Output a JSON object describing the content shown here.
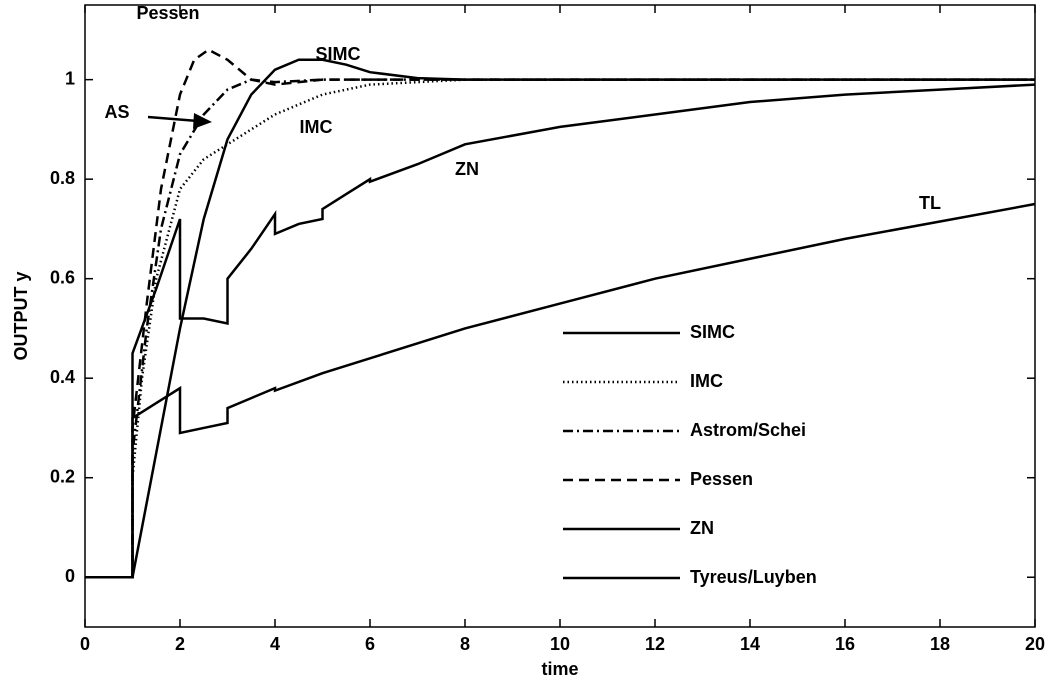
{
  "chart_data": {
    "type": "line",
    "xlabel": "time",
    "ylabel": "OUTPUT y",
    "xlim": [
      0,
      20
    ],
    "ylim": [
      -0.1,
      1.15
    ],
    "xticks": [
      0,
      2,
      4,
      6,
      8,
      10,
      12,
      14,
      16,
      18,
      20
    ],
    "yticks": [
      0,
      0.2,
      0.4,
      0.6,
      0.8,
      1
    ],
    "grid": false,
    "legend": "lower right",
    "annotations": [
      "Pessen",
      "SIMC",
      "AS",
      "IMC",
      "ZN",
      "TL"
    ],
    "series": [
      {
        "name": "SIMC",
        "color": "#000000",
        "dash": "solid",
        "x": [
          0,
          1,
          1.5,
          2,
          2.5,
          3,
          3.5,
          4,
          4.5,
          5,
          5.5,
          6,
          7,
          8,
          10,
          20
        ],
        "values": [
          0,
          0,
          0.25,
          0.5,
          0.72,
          0.88,
          0.97,
          1.02,
          1.04,
          1.04,
          1.03,
          1.015,
          1.003,
          1.0,
          1.0,
          1.0
        ]
      },
      {
        "name": "IMC",
        "color": "#000000",
        "dash": "dotted",
        "x": [
          0,
          1,
          1,
          1.2,
          1.5,
          2,
          2.5,
          3,
          3.5,
          4,
          5,
          6,
          7,
          8,
          20
        ],
        "values": [
          0,
          0,
          0.2,
          0.4,
          0.6,
          0.78,
          0.84,
          0.87,
          0.9,
          0.93,
          0.97,
          0.99,
          0.995,
          1,
          1
        ]
      },
      {
        "name": "Astrom/Schei",
        "color": "#000000",
        "dash": "dashdot",
        "x": [
          0,
          1,
          1,
          1.3,
          1.6,
          2,
          2.5,
          3,
          3.5,
          4,
          5,
          6,
          20
        ],
        "values": [
          0,
          0,
          0.25,
          0.5,
          0.7,
          0.85,
          0.93,
          0.98,
          1.0,
          0.995,
          1.0,
          1,
          1
        ]
      },
      {
        "name": "Pessen",
        "color": "#000000",
        "dash": "dashed",
        "x": [
          0,
          1,
          1,
          1.3,
          1.6,
          2,
          2.3,
          2.6,
          3,
          3.5,
          4,
          4.5,
          5,
          20
        ],
        "values": [
          0,
          0,
          0.3,
          0.55,
          0.78,
          0.97,
          1.04,
          1.06,
          1.04,
          1.0,
          0.99,
          0.995,
          1,
          1
        ]
      },
      {
        "name": "ZN",
        "color": "#000000",
        "dash": "solid",
        "x": [
          0,
          1,
          1,
          1.5,
          2,
          2,
          2.5,
          3,
          3,
          3.5,
          4,
          4,
          4.5,
          5,
          5,
          5.5,
          6,
          6,
          7,
          8,
          10,
          12,
          14,
          16,
          18,
          20
        ],
        "values": [
          0,
          0,
          0.45,
          0.58,
          0.72,
          0.52,
          0.52,
          0.51,
          0.6,
          0.66,
          0.73,
          0.69,
          0.71,
          0.72,
          0.74,
          0.77,
          0.8,
          0.795,
          0.83,
          0.87,
          0.905,
          0.93,
          0.955,
          0.97,
          0.98,
          0.99
        ]
      },
      {
        "name": "Tyreus/Luyben",
        "color": "#000000",
        "dash": "solid",
        "x": [
          0,
          1,
          1,
          1.5,
          2,
          2,
          2.5,
          3,
          3,
          3.5,
          4,
          4,
          5,
          6,
          8,
          10,
          12,
          14,
          16,
          18,
          20
        ],
        "values": [
          0,
          0,
          0.32,
          0.35,
          0.38,
          0.29,
          0.3,
          0.31,
          0.34,
          0.36,
          0.38,
          0.375,
          0.41,
          0.44,
          0.5,
          0.55,
          0.6,
          0.64,
          0.68,
          0.715,
          0.75
        ]
      }
    ]
  }
}
